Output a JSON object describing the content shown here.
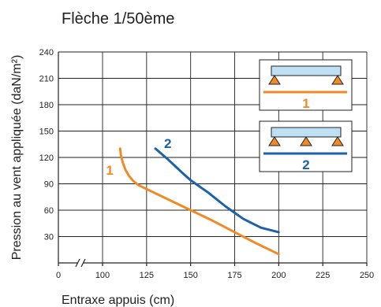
{
  "chart_data": {
    "type": "line",
    "title": "Flèche 1/50ème",
    "xlabel": "Entraxe appuis (cm)",
    "ylabel": "Pression au vent appliquée  (daN/m²)",
    "xlim": [
      0,
      250
    ],
    "ylim": [
      0,
      240
    ],
    "x_ticks": [
      "0",
      "100",
      "125",
      "150",
      "175",
      "200",
      "225",
      "250"
    ],
    "y_ticks": [
      "30",
      "60",
      "90",
      "120",
      "150",
      "180",
      "210",
      "240"
    ],
    "grid": true,
    "x_axis_break": true,
    "series": [
      {
        "name": "1",
        "color": "#f08a24",
        "points": [
          [
            110,
            130
          ],
          [
            110.5,
            122
          ],
          [
            111.5,
            114
          ],
          [
            113,
            106
          ],
          [
            115,
            99
          ],
          [
            117.5,
            93
          ],
          [
            120,
            89
          ],
          [
            125,
            84
          ],
          [
            137.5,
            72
          ],
          [
            150,
            60
          ],
          [
            162.5,
            48
          ],
          [
            175,
            35
          ],
          [
            187.5,
            22
          ],
          [
            200,
            10
          ]
        ]
      },
      {
        "name": "2",
        "color": "#1c62a8",
        "points": [
          [
            130,
            130
          ],
          [
            137.5,
            117
          ],
          [
            145,
            103
          ],
          [
            150,
            94
          ],
          [
            160,
            80
          ],
          [
            170,
            64
          ],
          [
            180,
            50
          ],
          [
            190,
            40
          ],
          [
            200,
            35
          ]
        ]
      }
    ],
    "legend": {
      "position": "top-right",
      "entries": [
        {
          "label": "1",
          "supports": 2,
          "color": "#f08a24"
        },
        {
          "label": "2",
          "supports": 3,
          "color": "#1c62a8"
        }
      ]
    },
    "colors": {
      "beam_fill": "#bfe0f2",
      "support_fill": "#f08a24"
    }
  }
}
